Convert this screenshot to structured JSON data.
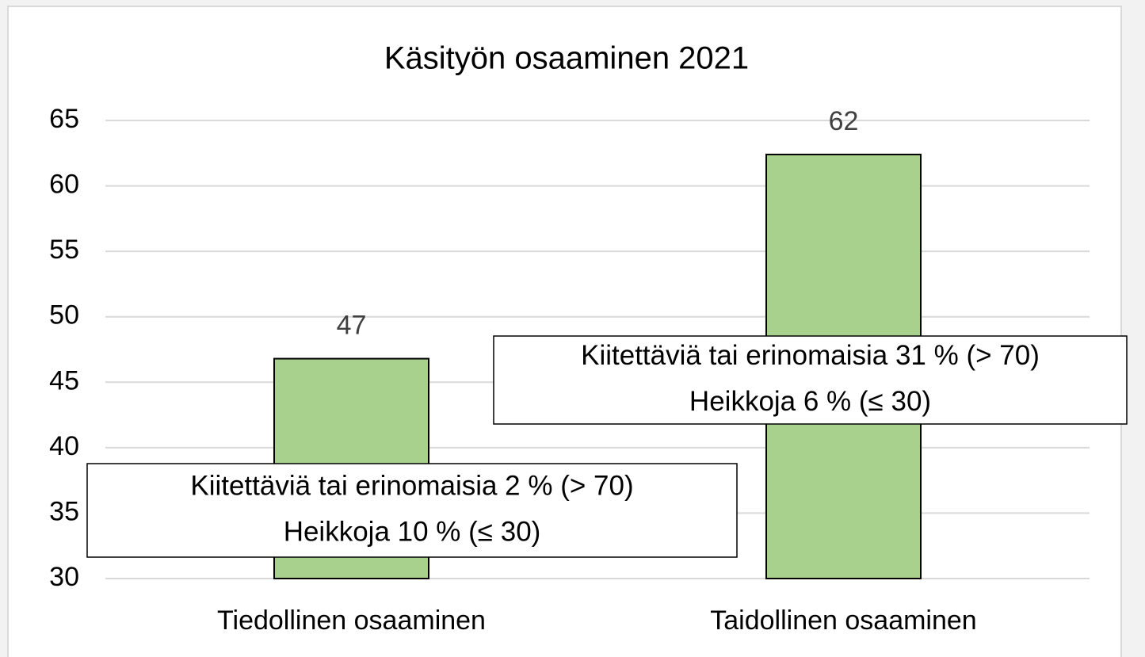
{
  "chart_data": {
    "type": "bar",
    "title": "Käsityön osaaminen 2021",
    "categories": [
      "Tiedollinen osaaminen",
      "Taidollinen osaaminen"
    ],
    "values": [
      46.8,
      62.4
    ],
    "value_labels": [
      "47",
      "62"
    ],
    "color": "#a9d18e",
    "ylim": [
      30,
      65
    ],
    "yticks": [
      30,
      35,
      40,
      45,
      50,
      55,
      60,
      65
    ],
    "grid": true,
    "annotations": [
      [
        "Kiitettäviä tai erinomaisia 2 % (> 70)",
        "Heikkoja 10 % (≤ 30)"
      ],
      [
        "Kiitettäviä tai erinomaisia 31 % (> 70)",
        "Heikkoja 6 % (≤ 30)"
      ]
    ]
  }
}
